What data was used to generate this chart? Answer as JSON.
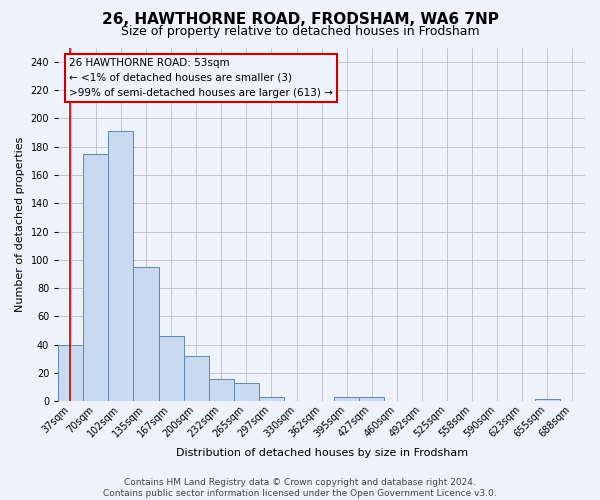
{
  "title": "26, HAWTHORNE ROAD, FRODSHAM, WA6 7NP",
  "subtitle": "Size of property relative to detached houses in Frodsham",
  "xlabel": "Distribution of detached houses by size in Frodsham",
  "ylabel": "Number of detached properties",
  "footer_line1": "Contains HM Land Registry data © Crown copyright and database right 2024.",
  "footer_line2": "Contains public sector information licensed under the Open Government Licence v3.0.",
  "bin_labels": [
    "37sqm",
    "70sqm",
    "102sqm",
    "135sqm",
    "167sqm",
    "200sqm",
    "232sqm",
    "265sqm",
    "297sqm",
    "330sqm",
    "362sqm",
    "395sqm",
    "427sqm",
    "460sqm",
    "492sqm",
    "525sqm",
    "558sqm",
    "590sqm",
    "623sqm",
    "655sqm",
    "688sqm"
  ],
  "bar_heights": [
    40,
    175,
    191,
    95,
    46,
    32,
    16,
    13,
    3,
    0,
    0,
    3,
    3,
    0,
    0,
    0,
    0,
    0,
    0,
    2,
    0
  ],
  "bar_color": "#c9d9f0",
  "bar_edge_color": "#5a8ab0",
  "annotation_box_text": "26 HAWTHORNE ROAD: 53sqm",
  "annotation_line1": "← <1% of detached houses are smaller (3)",
  "annotation_line2": ">99% of semi-detached houses are larger (613) →",
  "annotation_box_edge_color": "#cc0000",
  "marker_line_color": "#cc0000",
  "ylim": [
    0,
    250
  ],
  "yticks": [
    0,
    20,
    40,
    60,
    80,
    100,
    120,
    140,
    160,
    180,
    200,
    220,
    240
  ],
  "background_color": "#eef2fa",
  "grid_color": "#bbbbcc",
  "title_fontsize": 11,
  "subtitle_fontsize": 9,
  "axis_label_fontsize": 8,
  "tick_fontsize": 7,
  "annotation_fontsize": 7.5,
  "footer_fontsize": 6.5
}
